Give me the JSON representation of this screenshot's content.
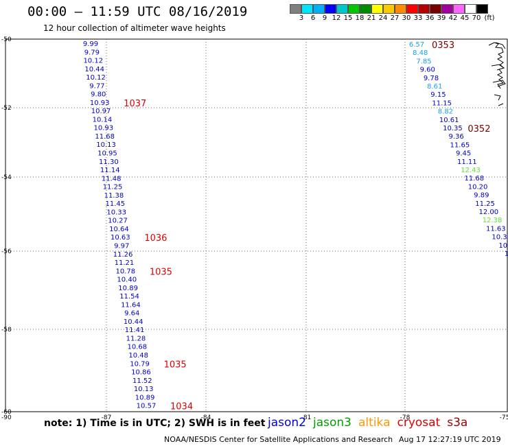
{
  "header": {
    "title": "00:00 – 11:59 UTC 08/16/2019",
    "subtitle": "12 hour collection of altimeter wave heights"
  },
  "legend": {
    "colors": [
      "#808080",
      "#00e5ff",
      "#00b0ff",
      "#0000ff",
      "#00c8c8",
      "#00c800",
      "#008c00",
      "#ffff00",
      "#ffc800",
      "#ff8c00",
      "#ff0000",
      "#b40000",
      "#780000",
      "#a000a0",
      "#ff66ff",
      "#ffffff",
      "#000000"
    ],
    "labels": [
      "3",
      "6",
      "9",
      "12",
      "15",
      "18",
      "21",
      "24",
      "27",
      "30",
      "33",
      "36",
      "39",
      "42",
      "45",
      "70",
      "(ft)"
    ]
  },
  "map": {
    "lon_range": [
      -90,
      -75
    ],
    "lat_range": [
      -60,
      -50
    ],
    "lon_ticks": [
      "-87",
      "-84",
      "-81",
      "-78",
      "-75"
    ],
    "lat_ticks": [
      "-50",
      "-52",
      "-54",
      "-56",
      "-58",
      "-60"
    ],
    "lon_corner": "-90"
  },
  "tracks": [
    {
      "name": "west",
      "points": [
        {
          "v": "9.99",
          "c": "#0000c8"
        },
        {
          "v": "9.79",
          "c": "#0000c8"
        },
        {
          "v": "10.12",
          "c": "#0000c8"
        },
        {
          "v": "10.44",
          "c": "#0000c8"
        },
        {
          "v": "10.12",
          "c": "#0000c8"
        },
        {
          "v": "9.77",
          "c": "#0000c8"
        },
        {
          "v": "9.80",
          "c": "#0000c8"
        },
        {
          "v": "10.93",
          "c": "#0000c8"
        },
        {
          "v": "10.97",
          "c": "#0000c8"
        },
        {
          "v": "10.14",
          "c": "#0000c8"
        },
        {
          "v": "10.93",
          "c": "#0000c8"
        },
        {
          "v": "11.68",
          "c": "#0000c8"
        },
        {
          "v": "10.13",
          "c": "#0000c8"
        },
        {
          "v": "10.95",
          "c": "#0000c8"
        },
        {
          "v": "11.30",
          "c": "#0000c8"
        },
        {
          "v": "11.14",
          "c": "#0000c8"
        },
        {
          "v": "11.48",
          "c": "#0000c8"
        },
        {
          "v": "11.25",
          "c": "#0000c8"
        },
        {
          "v": "11.38",
          "c": "#0000c8"
        },
        {
          "v": "11.45",
          "c": "#0000c8"
        },
        {
          "v": "10.33",
          "c": "#0000c8"
        },
        {
          "v": "10.27",
          "c": "#0000c8"
        },
        {
          "v": "10.64",
          "c": "#0000c8"
        },
        {
          "v": "10.63",
          "c": "#0000c8"
        },
        {
          "v": "9.97",
          "c": "#0000c8"
        },
        {
          "v": "11.26",
          "c": "#0000c8"
        },
        {
          "v": "11.21",
          "c": "#0000c8"
        },
        {
          "v": "10.78",
          "c": "#0000c8"
        },
        {
          "v": "10.40",
          "c": "#0000c8"
        },
        {
          "v": "10.89",
          "c": "#0000c8"
        },
        {
          "v": "11.54",
          "c": "#0000c8"
        },
        {
          "v": "11.64",
          "c": "#0000c8"
        },
        {
          "v": "9.64",
          "c": "#0000c8"
        },
        {
          "v": "10.44",
          "c": "#0000c8"
        },
        {
          "v": "11.41",
          "c": "#0000c8"
        },
        {
          "v": "11.28",
          "c": "#0000c8"
        },
        {
          "v": "10.68",
          "c": "#0000c8"
        },
        {
          "v": "10.48",
          "c": "#0000c8"
        },
        {
          "v": "10.79",
          "c": "#0000c8"
        },
        {
          "v": "10.86",
          "c": "#0000c8"
        },
        {
          "v": "11.52",
          "c": "#0000c8"
        },
        {
          "v": "10.13",
          "c": "#0000c8"
        },
        {
          "v": "10.89",
          "c": "#0000c8"
        },
        {
          "v": "10.57",
          "c": "#0000c8"
        }
      ],
      "times": [
        {
          "t": "1037",
          "after": 7,
          "c": "#e00000"
        },
        {
          "t": "1036",
          "after": 23,
          "c": "#e00000"
        },
        {
          "t": "1035",
          "after": 27,
          "c": "#e00000"
        },
        {
          "t": "1035",
          "after": 38,
          "c": "#e00000"
        },
        {
          "t": "1034",
          "after": 43,
          "c": "#e00000"
        }
      ]
    },
    {
      "name": "east",
      "points": [
        {
          "v": "6.57",
          "c": "#1aa0e8"
        },
        {
          "v": "8.48",
          "c": "#1aa0e8"
        },
        {
          "v": "7.85",
          "c": "#1aa0e8"
        },
        {
          "v": "9.60",
          "c": "#0000c8"
        },
        {
          "v": "9.78",
          "c": "#0000c8"
        },
        {
          "v": "8.61",
          "c": "#1aa0e8"
        },
        {
          "v": "9.15",
          "c": "#0000c8"
        },
        {
          "v": "11.15",
          "c": "#0000c8"
        },
        {
          "v": "8.82",
          "c": "#1aa0e8"
        },
        {
          "v": "10.61",
          "c": "#0000c8"
        },
        {
          "v": "10.35",
          "c": "#0000c8"
        },
        {
          "v": "9.36",
          "c": "#0000c8"
        },
        {
          "v": "11.65",
          "c": "#0000c8"
        },
        {
          "v": "9.45",
          "c": "#0000c8"
        },
        {
          "v": "11.11",
          "c": "#0000c8"
        },
        {
          "v": "12.43",
          "c": "#66dd33"
        },
        {
          "v": "11.68",
          "c": "#0000c8"
        },
        {
          "v": "10.20",
          "c": "#0000c8"
        },
        {
          "v": "9.89",
          "c": "#0000c8"
        },
        {
          "v": "11.25",
          "c": "#0000c8"
        },
        {
          "v": "12.00",
          "c": "#0000c8"
        },
        {
          "v": "12.38",
          "c": "#66dd33"
        },
        {
          "v": "11.63",
          "c": "#0000c8"
        },
        {
          "v": "10.3",
          "c": "#0000c8"
        },
        {
          "v": "10",
          "c": "#0000c8"
        },
        {
          "v": "1",
          "c": "#0000c8"
        }
      ],
      "times": [
        {
          "t": "0353",
          "after": 0,
          "c": "#780000"
        },
        {
          "t": "0352",
          "after": 10,
          "c": "#780000"
        }
      ]
    }
  ],
  "footer": {
    "note": "note: 1) Time is in UTC; 2) SWH is in feet",
    "credit": "NOAA/NESDIS Center for Satellite Applications and Research",
    "timestamp": "Aug 17 12:27:19 UTC 2019",
    "satellites": [
      {
        "name": "jason2",
        "color": "#0000e0"
      },
      {
        "name": "jason3",
        "color": "#00a000"
      },
      {
        "name": "altika",
        "color": "#ff9900"
      },
      {
        "name": "cryosat",
        "color": "#e00000"
      },
      {
        "name": "s3a",
        "color": "#990000"
      }
    ]
  }
}
